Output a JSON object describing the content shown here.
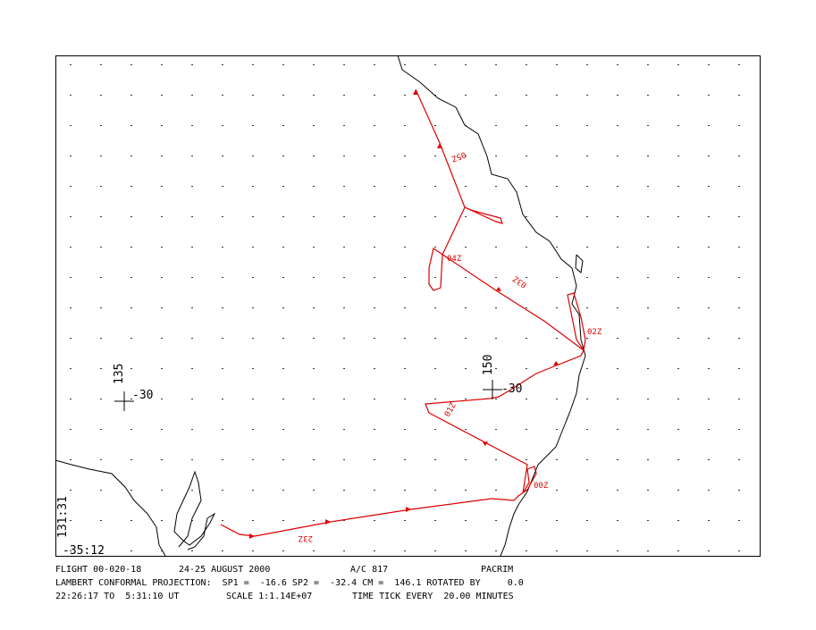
{
  "map": {
    "grid_labels": [
      "135",
      "-30",
      "150",
      "-30"
    ],
    "corner_labels": [
      "131:31",
      "-35:12"
    ],
    "time_labels": [
      "05Z",
      "04Z",
      "03Z",
      "02Z",
      "01Z",
      "00Z",
      "23Z"
    ]
  },
  "footer": {
    "line1": [
      "FLIGHT 00-020-18",
      "24-25 AUGUST 2000",
      "A/C 817",
      "PACRIM"
    ],
    "line2": "LAMBERT CONFORMAL PROJECTION:  SP1 =  -16.6 SP2 =  -32.4 CM =  146.1 ROTATED BY     0.0",
    "line3": [
      "22:26:17 TO  5:31:10 UT",
      "SCALE 1:1.14E+07",
      "TIME TICK EVERY  20.00 MINUTES"
    ]
  }
}
